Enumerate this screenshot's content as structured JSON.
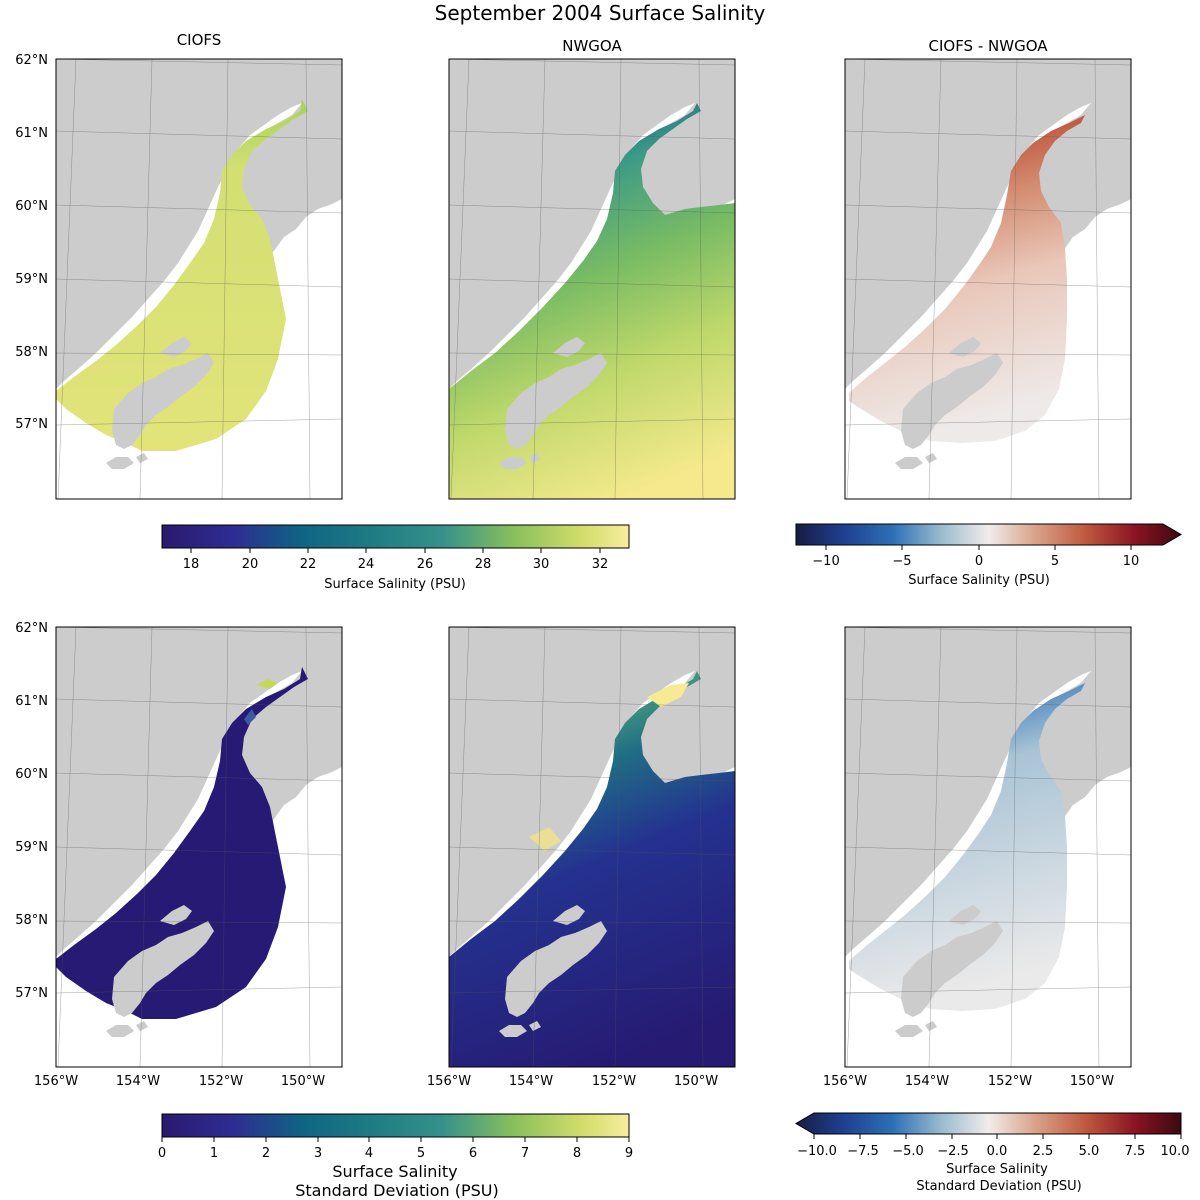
{
  "title": "September 2004 Surface Salinity",
  "columns": [
    "CIOFS",
    "NWGOA",
    "CIOFS - NWGOA"
  ],
  "lat_ticks": [
    "62°N",
    "61°N",
    "60°N",
    "59°N",
    "58°N",
    "57°N"
  ],
  "lon_ticks": [
    "156°W",
    "154°W",
    "152°W",
    "150°W"
  ],
  "colorbars": {
    "mean_salinity": {
      "label": "Surface Salinity (PSU)",
      "colormap": "haline",
      "range": [
        17,
        33
      ],
      "ticks": [
        "18",
        "20",
        "22",
        "24",
        "26",
        "28",
        "30",
        "32"
      ]
    },
    "mean_difference": {
      "label": "Surface Salinity (PSU)",
      "colormap": "balance",
      "range": [
        -12,
        12
      ],
      "extend": "max",
      "ticks": [
        "−10",
        "−5",
        "0",
        "5",
        "10"
      ]
    },
    "std_salinity": {
      "label_line1": "Surface Salinity",
      "label_line2": "Standard Deviation (PSU)",
      "colormap": "haline",
      "range": [
        0,
        9
      ],
      "ticks": [
        "0",
        "1",
        "2",
        "3",
        "4",
        "5",
        "6",
        "7",
        "8",
        "9"
      ]
    },
    "std_difference": {
      "label_line1": "Surface Salinity",
      "label_line2": "Standard Deviation (PSU)",
      "colormap": "balance",
      "range": [
        -10,
        10
      ],
      "extend": "min",
      "ticks": [
        "−10.0",
        "−7.5",
        "−5.0",
        "−2.5",
        "0.0",
        "2.5",
        "5.0",
        "7.5",
        "10.0"
      ]
    }
  },
  "colors": {
    "land": "#cccccc",
    "haline": [
      "#2a1a6e",
      "#2e2c92",
      "#1d4a8a",
      "#0f6484",
      "#1f7c84",
      "#35918a",
      "#4fa77a",
      "#86bf5c",
      "#c5d85c",
      "#f2e887",
      "#f8ed9e"
    ],
    "balance": [
      "#171c42",
      "#1e3f8f",
      "#2c6fb6",
      "#7aa8c9",
      "#c9d8e0",
      "#f1eceb",
      "#e0b8a5",
      "#cf7f5f",
      "#b33a2c",
      "#7d1020",
      "#3c0912"
    ]
  }
}
